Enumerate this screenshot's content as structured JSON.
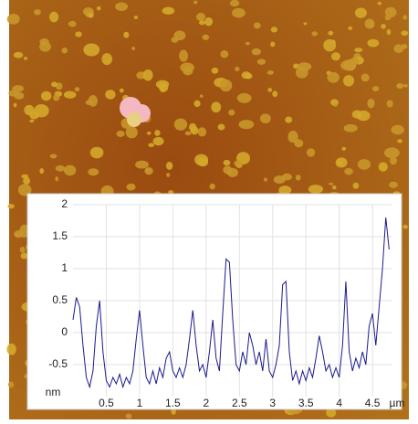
{
  "chart_data": {
    "type": "line",
    "x_label": "µm",
    "y_label": "nm",
    "x": [
      0,
      0.05,
      0.1,
      0.15,
      0.2,
      0.25,
      0.3,
      0.35,
      0.4,
      0.45,
      0.5,
      0.55,
      0.6,
      0.65,
      0.7,
      0.75,
      0.8,
      0.85,
      0.9,
      0.95,
      1.0,
      1.05,
      1.1,
      1.15,
      1.2,
      1.25,
      1.3,
      1.35,
      1.4,
      1.45,
      1.5,
      1.55,
      1.6,
      1.65,
      1.7,
      1.75,
      1.8,
      1.85,
      1.9,
      1.95,
      2.0,
      2.05,
      2.1,
      2.15,
      2.2,
      2.25,
      2.3,
      2.35,
      2.4,
      2.45,
      2.5,
      2.55,
      2.6,
      2.65,
      2.7,
      2.75,
      2.8,
      2.85,
      2.9,
      2.95,
      3.0,
      3.05,
      3.1,
      3.15,
      3.2,
      3.25,
      3.3,
      3.35,
      3.4,
      3.45,
      3.5,
      3.55,
      3.6,
      3.65,
      3.7,
      3.75,
      3.8,
      3.85,
      3.9,
      3.95,
      4.0,
      4.05,
      4.1,
      4.15,
      4.2,
      4.25,
      4.3,
      4.35,
      4.4,
      4.45,
      4.5,
      4.55,
      4.6,
      4.65,
      4.7,
      4.75
    ],
    "series": [
      {
        "color": "#1a1a8c",
        "values": [
          0.2,
          0.55,
          0.4,
          -0.2,
          -0.7,
          -0.85,
          -0.6,
          0.1,
          0.5,
          -0.3,
          -0.75,
          -0.85,
          -0.7,
          -0.8,
          -0.65,
          -0.85,
          -0.7,
          -0.8,
          -0.6,
          -0.1,
          0.35,
          -0.2,
          -0.7,
          -0.8,
          -0.6,
          -0.8,
          -0.55,
          -0.7,
          -0.4,
          -0.3,
          -0.6,
          -0.7,
          -0.55,
          -0.7,
          -0.5,
          -0.1,
          0.35,
          -0.2,
          -0.6,
          -0.5,
          -0.7,
          -0.3,
          0.2,
          -0.4,
          -0.6,
          0.3,
          1.15,
          1.1,
          0.2,
          -0.5,
          -0.6,
          -0.3,
          -0.5,
          0.0,
          -0.2,
          -0.5,
          -0.3,
          -0.6,
          -0.1,
          -0.6,
          -0.7,
          -0.5,
          -0.2,
          0.75,
          0.8,
          -0.3,
          -0.75,
          -0.6,
          -0.8,
          -0.6,
          -0.75,
          -0.55,
          -0.7,
          -0.4,
          -0.05,
          -0.3,
          -0.6,
          -0.5,
          -0.7,
          -0.55,
          -0.7,
          -0.2,
          0.8,
          -0.3,
          -0.6,
          -0.4,
          -0.55,
          -0.3,
          -0.5,
          0.1,
          0.3,
          -0.2,
          0.4,
          1.0,
          1.8,
          1.3
        ]
      }
    ],
    "xlim": [
      0,
      4.8
    ],
    "ylim": [
      -1,
      2
    ],
    "xticks": [
      0.5,
      1,
      1.5,
      2,
      2.5,
      3,
      3.5,
      4,
      4.5
    ],
    "yticks": [
      -0.5,
      0,
      0.5,
      1,
      1.5,
      2
    ],
    "grid": true
  }
}
